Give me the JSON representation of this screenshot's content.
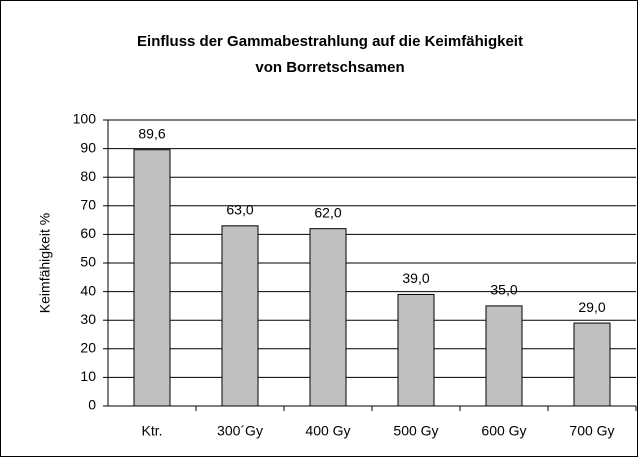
{
  "chart_data": {
    "type": "bar",
    "title": [
      "Einfluss der Gammabestrahlung auf die Keimfähigkeit",
      "von Borretschsamen"
    ],
    "y_label": "Keimfähigkeit %",
    "categories": [
      "Ktr.",
      "300´Gy",
      "400 Gy",
      "500 Gy",
      "600 Gy",
      "700 Gy"
    ],
    "values": [
      89.6,
      63,
      62,
      39,
      35,
      29
    ],
    "value_labels": [
      "89,6",
      "63,0",
      "62,0",
      "39,0",
      "35,0",
      "29,0"
    ],
    "color": "#c0c0c0",
    "ylim": [
      0,
      100
    ],
    "yticks": [
      0,
      10,
      20,
      30,
      40,
      50,
      60,
      70,
      80,
      90,
      100
    ],
    "grid": true
  }
}
